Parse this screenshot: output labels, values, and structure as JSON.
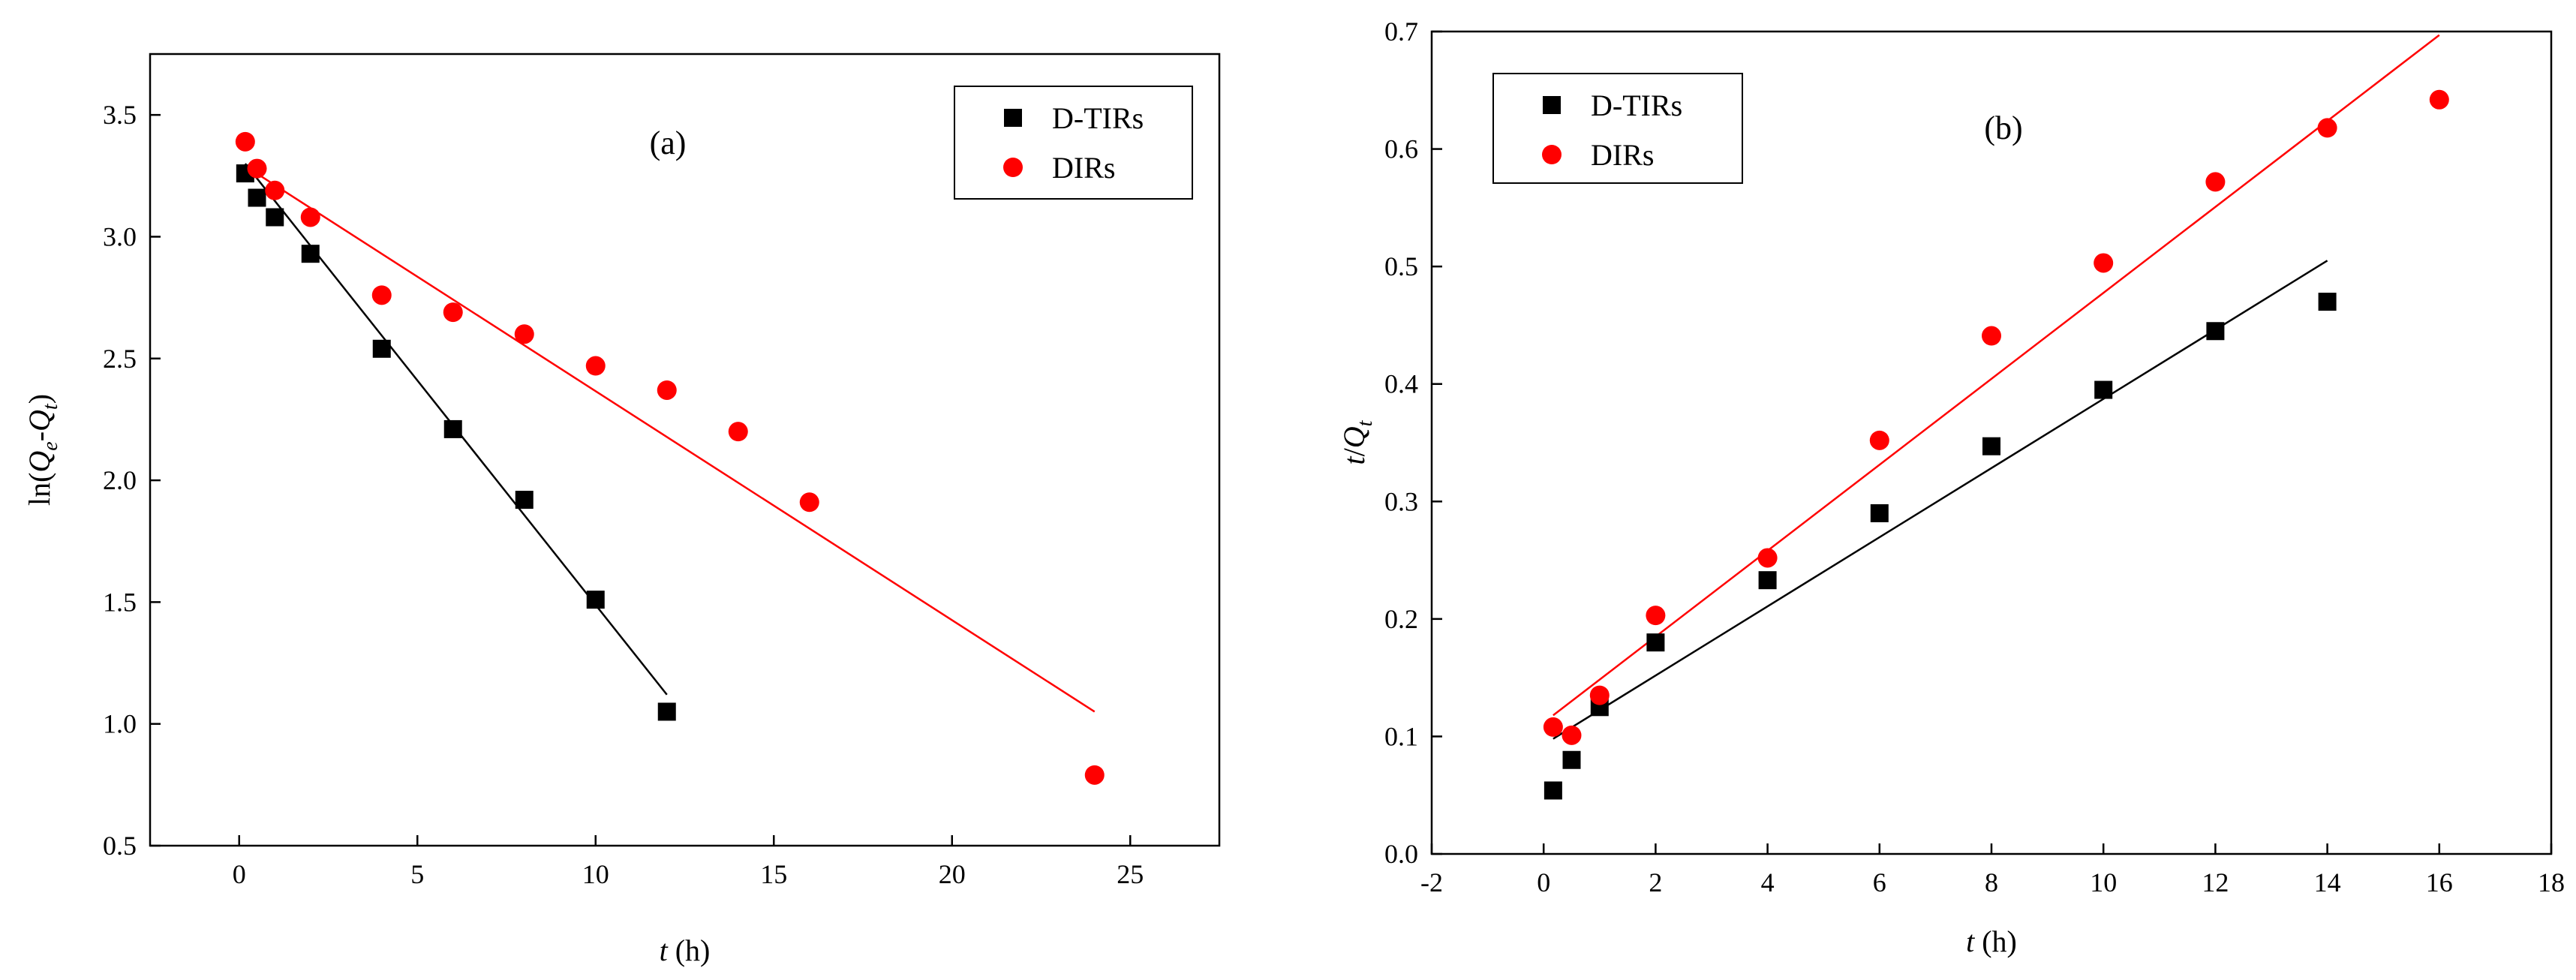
{
  "chart_data": [
    {
      "type": "scatter",
      "panel_label": "(a)",
      "xlabel_var": "t",
      "xlabel_unit": " (h)",
      "ylabel_parts": [
        "ln(",
        "Q",
        "e",
        "-",
        "Q",
        "t",
        ")"
      ],
      "xlim": [
        -2.5,
        27.5
      ],
      "ylim": [
        0.5,
        3.75
      ],
      "xticks": [
        0,
        5,
        10,
        15,
        20,
        25
      ],
      "xtick_labels": [
        "0",
        "5",
        "10",
        "15",
        "20",
        "25"
      ],
      "yticks": [
        0.5,
        1.0,
        1.5,
        2.0,
        2.5,
        3.0,
        3.5
      ],
      "ytick_labels": [
        "0.5",
        "1.0",
        "1.5",
        "2.0",
        "2.5",
        "3.0",
        "3.5"
      ],
      "grid": false,
      "legend_position": "top-right",
      "series": [
        {
          "name": "D-TIRs",
          "marker": "square",
          "color": "#000000",
          "x": [
            0.17,
            0.5,
            1,
            2,
            4,
            6,
            8,
            10,
            12
          ],
          "y": [
            3.26,
            3.16,
            3.08,
            2.93,
            2.54,
            2.21,
            1.92,
            1.51,
            1.05
          ],
          "fit": {
            "x": [
              0.17,
              12
            ],
            "y": [
              3.3,
              1.12
            ],
            "color": "#000000"
          }
        },
        {
          "name": "DIRs",
          "marker": "circle",
          "color": "#ff0000",
          "x": [
            0.17,
            0.5,
            1,
            2,
            4,
            6,
            8,
            10,
            12,
            14,
            16,
            24
          ],
          "y": [
            3.39,
            3.28,
            3.19,
            3.08,
            2.76,
            2.69,
            2.6,
            2.47,
            2.37,
            2.2,
            1.91,
            0.79
          ],
          "fit": {
            "x": [
              0.17,
              24
            ],
            "y": [
              3.29,
              1.05
            ],
            "color": "#ff0000"
          }
        }
      ]
    },
    {
      "type": "scatter",
      "panel_label": "(b)",
      "xlabel_var": "t",
      "xlabel_unit": " (h)",
      "ylabel_parts": [
        "t",
        "/",
        "Q",
        "t"
      ],
      "xlim": [
        -2,
        18
      ],
      "ylim": [
        0.0,
        0.7
      ],
      "xticks": [
        -2,
        0,
        2,
        4,
        6,
        8,
        10,
        12,
        14,
        16,
        18
      ],
      "xtick_labels": [
        "-2",
        "0",
        "2",
        "4",
        "6",
        "8",
        "10",
        "12",
        "14",
        "16",
        "18"
      ],
      "yticks": [
        0.0,
        0.1,
        0.2,
        0.3,
        0.4,
        0.5,
        0.6,
        0.7
      ],
      "ytick_labels": [
        "0.0",
        "0.1",
        "0.2",
        "0.3",
        "0.4",
        "0.5",
        "0.6",
        "0.7"
      ],
      "grid": false,
      "legend_position": "top-left",
      "series": [
        {
          "name": "D-TIRs",
          "marker": "square",
          "color": "#000000",
          "x": [
            0.17,
            0.5,
            1,
            2,
            4,
            6,
            8,
            10,
            12,
            14
          ],
          "y": [
            0.054,
            0.08,
            0.125,
            0.18,
            0.233,
            0.29,
            0.347,
            0.395,
            0.445,
            0.47
          ],
          "fit": {
            "x": [
              0.17,
              14
            ],
            "y": [
              0.098,
              0.505
            ],
            "color": "#000000"
          }
        },
        {
          "name": "DIRs",
          "marker": "circle",
          "color": "#ff0000",
          "x": [
            0.17,
            0.5,
            1,
            2,
            4,
            6,
            8,
            10,
            12,
            14,
            16
          ],
          "y": [
            0.108,
            0.101,
            0.135,
            0.203,
            0.252,
            0.352,
            0.441,
            0.503,
            0.572,
            0.618,
            0.642
          ],
          "fit": {
            "x": [
              0.17,
              16
            ],
            "y": [
              0.118,
              0.697
            ],
            "color": "#ff0000"
          }
        }
      ]
    }
  ]
}
